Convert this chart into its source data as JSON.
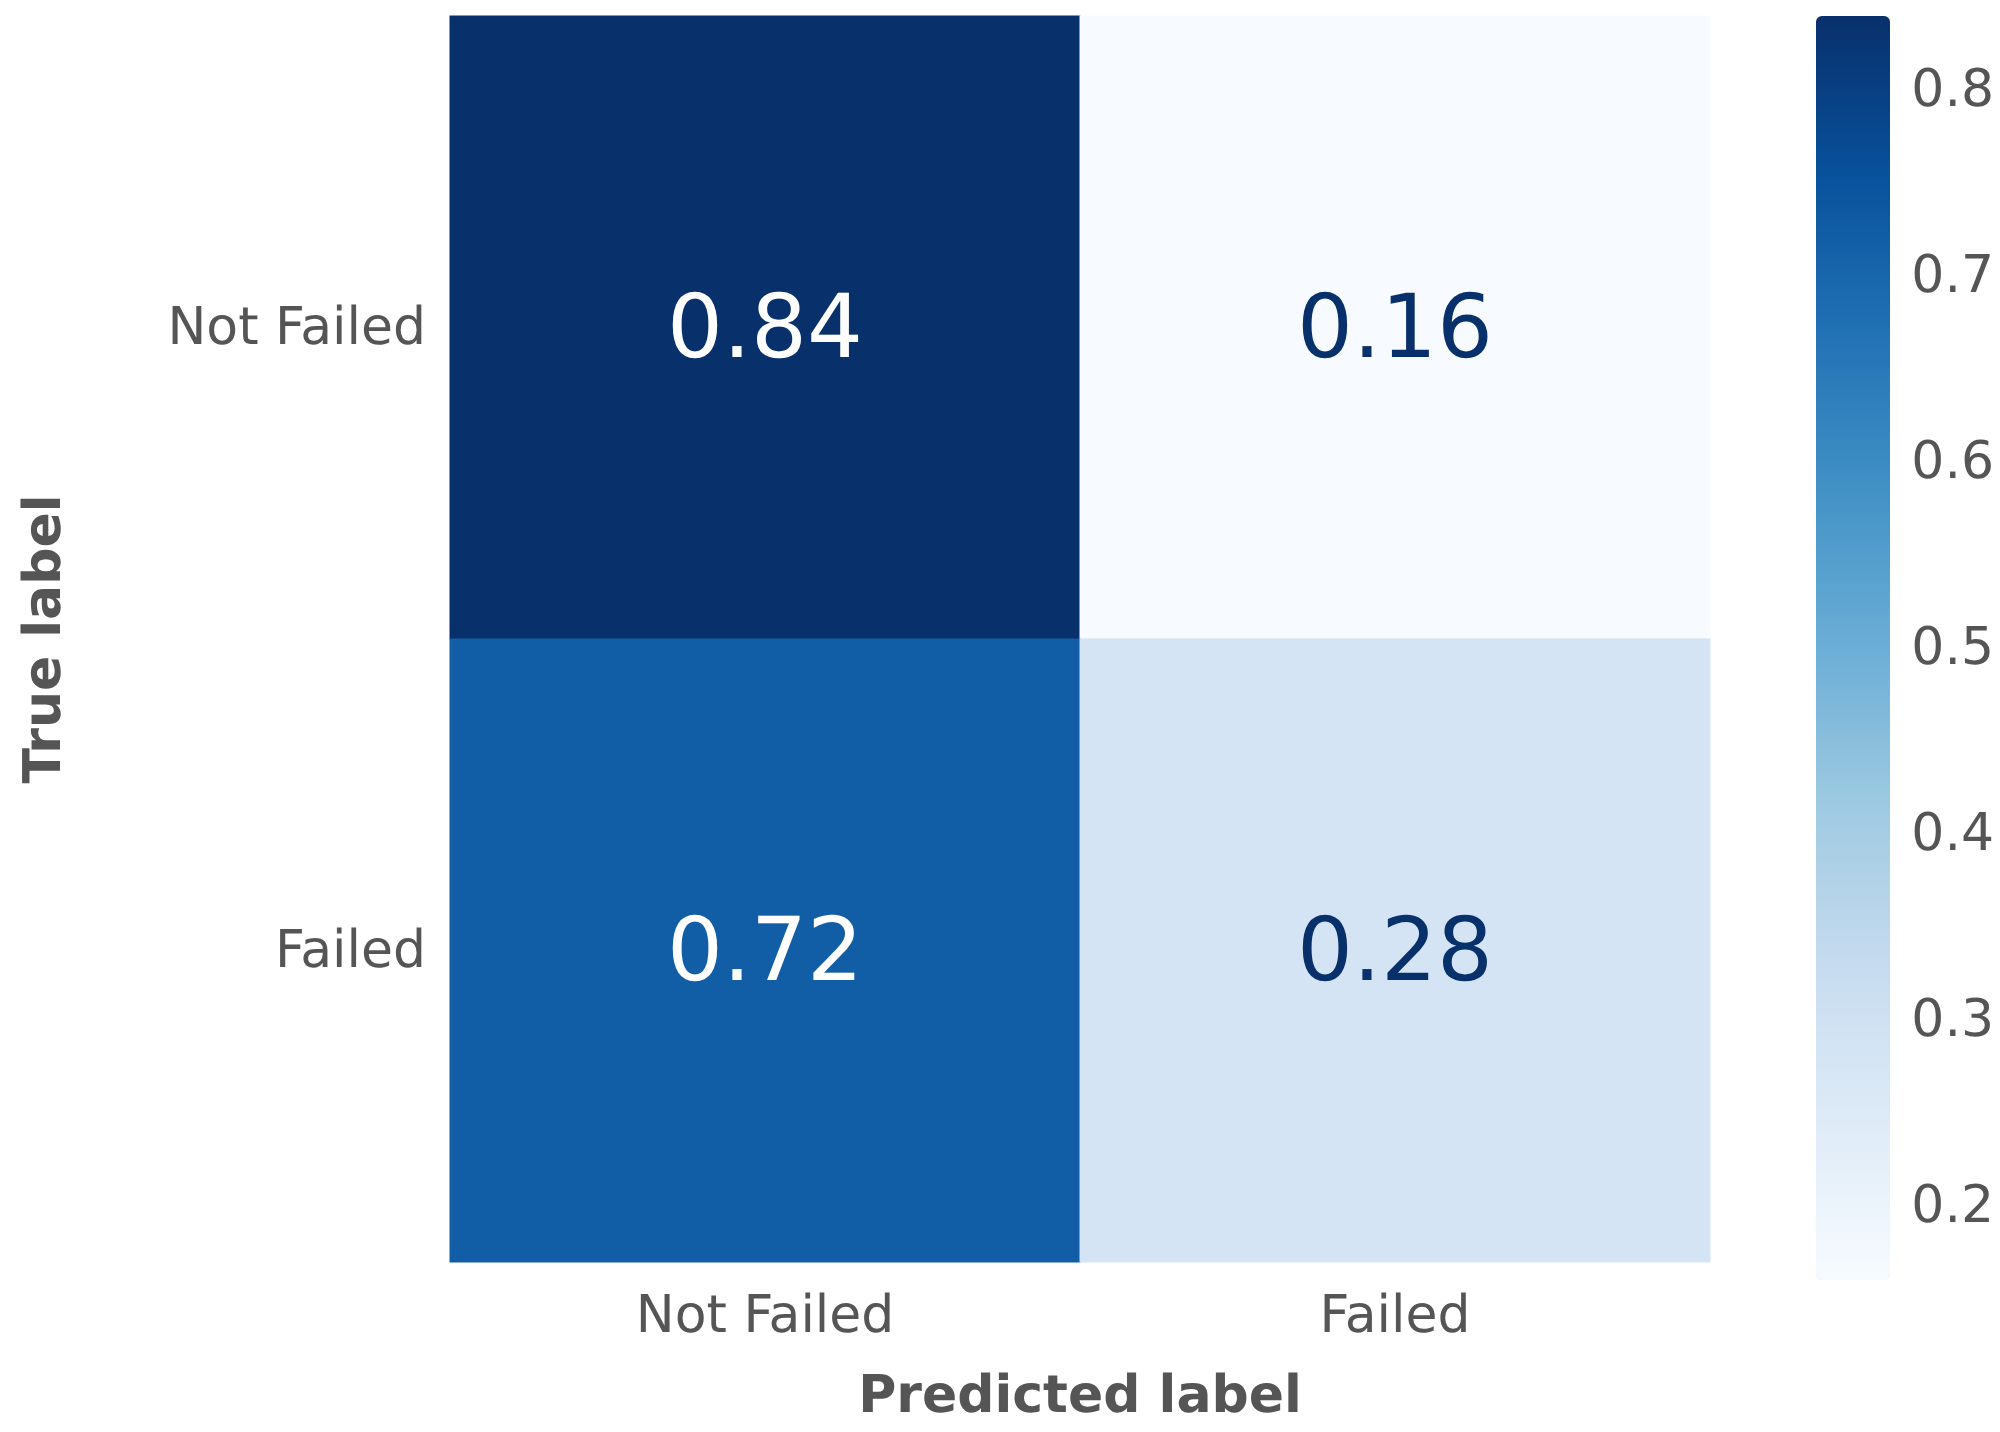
{
  "chart_data": {
    "type": "heatmap",
    "xlabel": "Predicted label",
    "ylabel": "True label",
    "categories": [
      "Not Failed",
      "Failed"
    ],
    "y_categories": [
      "Not Failed",
      "Failed"
    ],
    "cells": [
      [
        0.84,
        0.16
      ],
      [
        0.72,
        0.28
      ]
    ],
    "data_labels": true,
    "clim": [
      0.16,
      0.84
    ],
    "cticks": [
      0.2,
      0.3,
      0.4,
      0.5,
      0.6,
      0.7,
      0.8
    ]
  }
}
